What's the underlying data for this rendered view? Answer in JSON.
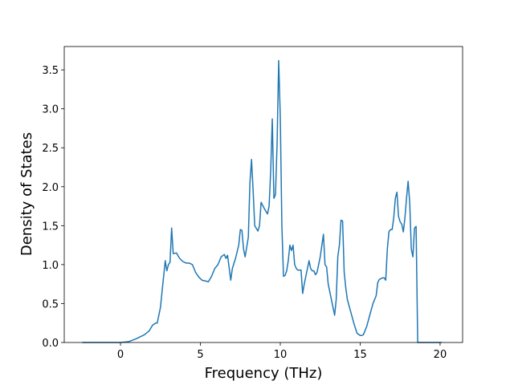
{
  "chart_data": {
    "type": "line",
    "xlabel": "Frequency (THz)",
    "ylabel": "Density of States",
    "color": "#1f77b4",
    "x": [
      -2.4,
      0,
      0.5,
      1.0,
      1.5,
      1.8,
      2.0,
      2.2,
      2.3,
      2.5,
      2.7,
      2.8,
      2.9,
      3.0,
      3.1,
      3.2,
      3.3,
      3.5,
      3.7,
      3.9,
      4.1,
      4.3,
      4.5,
      4.7,
      4.9,
      5.1,
      5.3,
      5.5,
      5.7,
      5.9,
      6.1,
      6.3,
      6.5,
      6.6,
      6.7,
      6.9,
      7.0,
      7.2,
      7.4,
      7.5,
      7.6,
      7.7,
      7.8,
      8.0,
      8.1,
      8.2,
      8.3,
      8.4,
      8.6,
      8.7,
      8.8,
      9.0,
      9.2,
      9.3,
      9.4,
      9.5,
      9.6,
      9.7,
      9.8,
      9.9,
      10.0,
      10.1,
      10.2,
      10.3,
      10.4,
      10.5,
      10.6,
      10.7,
      10.8,
      10.9,
      11.0,
      11.1,
      11.3,
      11.4,
      11.5,
      11.7,
      11.8,
      11.9,
      12.0,
      12.1,
      12.2,
      12.3,
      12.5,
      12.7,
      12.8,
      12.9,
      13.0,
      13.2,
      13.3,
      13.4,
      13.5,
      13.6,
      13.7,
      13.8,
      13.9,
      14.0,
      14.1,
      14.2,
      14.4,
      14.6,
      14.8,
      15.0,
      15.1,
      15.2,
      15.4,
      15.6,
      15.8,
      16.0,
      16.1,
      16.2,
      16.4,
      16.5,
      16.6,
      16.7,
      16.8,
      16.9,
      17.0,
      17.1,
      17.2,
      17.3,
      17.4,
      17.5,
      17.6,
      17.7,
      17.8,
      17.9,
      18.0,
      18.1,
      18.2,
      18.3,
      18.4,
      18.5,
      18.6,
      20.1
    ],
    "values": [
      0,
      0,
      0.01,
      0.05,
      0.1,
      0.15,
      0.22,
      0.25,
      0.25,
      0.45,
      0.85,
      1.05,
      0.92,
      1.0,
      1.03,
      1.47,
      1.14,
      1.15,
      1.08,
      1.04,
      1.02,
      1.02,
      1.0,
      0.9,
      0.84,
      0.8,
      0.79,
      0.78,
      0.85,
      0.95,
      1.0,
      1.1,
      1.13,
      1.08,
      1.12,
      0.8,
      0.95,
      1.08,
      1.25,
      1.45,
      1.44,
      1.2,
      1.1,
      1.35,
      2.05,
      2.35,
      1.95,
      1.5,
      1.43,
      1.5,
      1.8,
      1.72,
      1.65,
      1.75,
      2.2,
      2.87,
      1.85,
      1.9,
      2.55,
      3.62,
      2.9,
      1.5,
      0.85,
      0.86,
      0.92,
      1.05,
      1.25,
      1.18,
      1.25,
      1.0,
      0.95,
      0.93,
      0.93,
      0.63,
      0.75,
      0.95,
      1.05,
      0.95,
      0.92,
      0.92,
      0.87,
      0.9,
      1.1,
      1.39,
      1.0,
      0.97,
      0.75,
      0.55,
      0.45,
      0.35,
      0.55,
      1.1,
      1.25,
      1.57,
      1.56,
      0.9,
      0.7,
      0.55,
      0.4,
      0.25,
      0.12,
      0.09,
      0.09,
      0.1,
      0.2,
      0.35,
      0.5,
      0.6,
      0.77,
      0.81,
      0.83,
      0.83,
      0.8,
      1.2,
      1.42,
      1.45,
      1.45,
      1.6,
      1.85,
      1.93,
      1.62,
      1.55,
      1.52,
      1.42,
      1.6,
      1.85,
      2.07,
      1.8,
      1.2,
      1.1,
      1.47,
      1.49,
      0,
      0
    ],
    "xlim": [
      -3.52,
      21.41
    ],
    "xticks": [
      0,
      5,
      10,
      15,
      20
    ],
    "ylim": [
      0,
      3.8
    ],
    "yticks": [
      {
        "value": 0,
        "label": "0.0"
      },
      0.5,
      {
        "value": 1,
        "label": "1.0"
      },
      1.5,
      {
        "value": 2,
        "label": "2.0"
      },
      2.5,
      {
        "value": 3,
        "label": "3.0"
      },
      3.5
    ]
  }
}
